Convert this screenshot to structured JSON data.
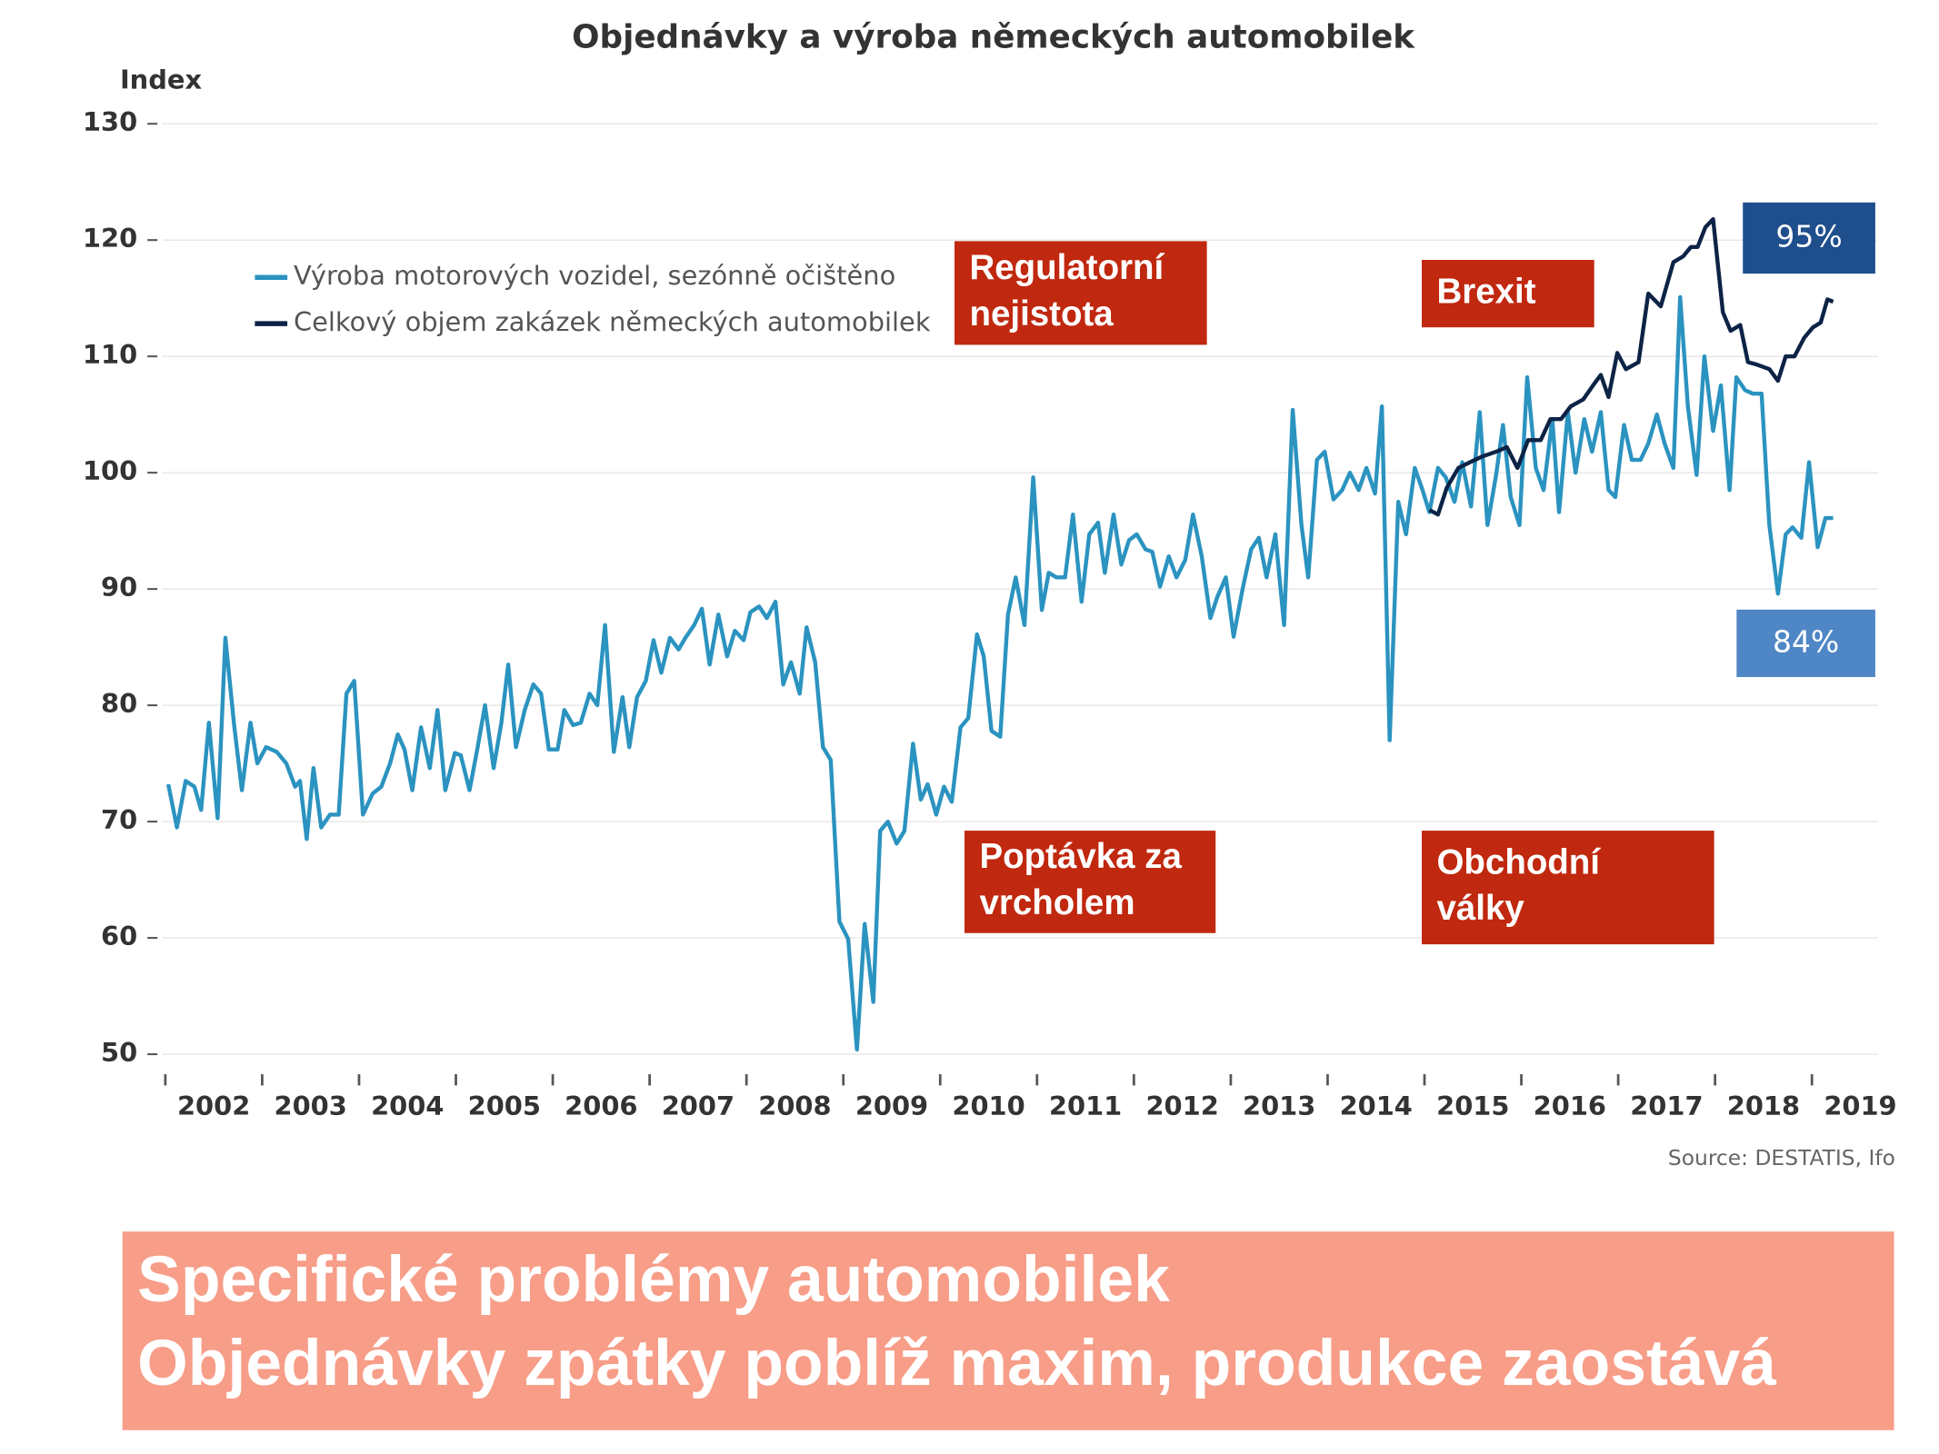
{
  "chart_data": {
    "type": "line",
    "title": "Objednávky a výroba německých automobilek",
    "y_label": "Index",
    "source": "Source: DESTATIS, Ifo",
    "ylim": [
      50,
      130
    ],
    "yticks": [
      50,
      60,
      70,
      80,
      90,
      100,
      110,
      120,
      130
    ],
    "xlim": [
      2001.97,
      2019.68
    ],
    "xticks": [
      2002,
      2003,
      2004,
      2005,
      2006,
      2007,
      2008,
      2009,
      2010,
      2011,
      2012,
      2013,
      2014,
      2015,
      2016,
      2017,
      2018,
      2019
    ],
    "grid": true,
    "legend": "upper left",
    "series": [
      {
        "name": "Výroba motorových vozidel, sezónně očištěno",
        "color": "#2b93c0",
        "x": [
          2002.03,
          2002.12,
          2002.21,
          2002.3,
          2002.37,
          2002.45,
          2002.54,
          2002.62,
          2002.71,
          2002.79,
          2002.88,
          2002.95,
          2003.04,
          2003.15,
          2003.25,
          2003.34,
          2003.39,
          2003.46,
          2003.53,
          2003.61,
          2003.7,
          2003.79,
          2003.87,
          2003.95,
          2004.04,
          2004.14,
          2004.23,
          2004.32,
          2004.4,
          2004.47,
          2004.55,
          2004.64,
          2004.73,
          2004.81,
          2004.89,
          2004.99,
          2005.05,
          2005.14,
          2005.22,
          2005.3,
          2005.39,
          2005.47,
          2005.54,
          2005.62,
          2005.71,
          2005.8,
          2005.88,
          2005.96,
          2006.05,
          2006.12,
          2006.21,
          2006.29,
          2006.38,
          2006.46,
          2006.54,
          2006.63,
          2006.72,
          2006.79,
          2006.87,
          2006.96,
          2007.04,
          2007.12,
          2007.21,
          2007.3,
          2007.37,
          2007.46,
          2007.54,
          2007.62,
          2007.71,
          2007.8,
          2007.88,
          2007.97,
          2008.04,
          2008.13,
          2008.21,
          2008.3,
          2008.38,
          2008.46,
          2008.55,
          2008.62,
          2008.71,
          2008.79,
          2008.87,
          2008.96,
          2009.05,
          2009.14,
          2009.22,
          2009.31,
          2009.38,
          2009.46,
          2009.55,
          2009.63,
          2009.72,
          2009.8,
          2009.87,
          2009.96,
          2010.04,
          2010.12,
          2010.21,
          2010.29,
          2010.38,
          2010.45,
          2010.53,
          2010.62,
          2010.7,
          2010.78,
          2010.87,
          2010.96,
          2011.05,
          2011.12,
          2011.2,
          2011.29,
          2011.37,
          2011.46,
          2011.54,
          2011.63,
          2011.7,
          2011.79,
          2011.87,
          2011.95,
          2012.03,
          2012.12,
          2012.19,
          2012.27,
          2012.36,
          2012.44,
          2012.53,
          2012.61,
          2012.7,
          2012.79,
          2012.86,
          2012.95,
          2013.03,
          2013.12,
          2013.21,
          2013.29,
          2013.37,
          2013.46,
          2013.55,
          2013.64,
          2013.73,
          2013.8,
          2013.89,
          2013.97,
          2014.06,
          2014.15,
          2014.23,
          2014.32,
          2014.4,
          2014.49,
          2014.56,
          2014.64,
          2014.73,
          2014.81,
          2014.9,
          2014.98,
          2015.05,
          2015.14,
          2015.22,
          2015.31,
          2015.39,
          2015.48,
          2015.57,
          2015.65,
          2015.74,
          2015.81,
          2015.89,
          2015.98,
          2016.06,
          2016.15,
          2016.23,
          2016.32,
          2016.39,
          2016.48,
          2016.56,
          2016.65,
          2016.73,
          2016.82,
          2016.9,
          2016.97,
          2017.06,
          2017.14,
          2017.23,
          2017.31,
          2017.4,
          2017.48,
          2017.57,
          2017.64,
          2017.72,
          2017.81,
          2017.89,
          2017.98,
          2018.06,
          2018.15,
          2018.22,
          2018.31,
          2018.39,
          2018.48,
          2018.56,
          2018.65,
          2018.73,
          2018.8,
          2018.89,
          2018.97,
          2019.06,
          2019.14,
          2019.22
        ],
        "values": [
          73.2,
          69.5,
          73.5,
          73,
          71,
          78.5,
          70.3,
          85.8,
          78.3,
          72.7,
          78.5,
          75,
          76.4,
          76,
          75,
          73,
          73.5,
          68.5,
          74.6,
          69.5,
          70.6,
          70.6,
          81,
          82.1,
          70.6,
          72.4,
          73,
          75,
          77.5,
          76.2,
          72.7,
          78.1,
          74.6,
          79.6,
          72.7,
          75.9,
          75.7,
          72.7,
          76.2,
          80,
          74.6,
          78.5,
          83.5,
          76.4,
          79.6,
          81.8,
          81,
          76.2,
          76.2,
          79.6,
          78.3,
          78.5,
          81,
          80,
          86.9,
          76,
          80.7,
          76.4,
          80.7,
          82.1,
          85.6,
          82.8,
          85.8,
          84.8,
          85.8,
          86.9,
          88.3,
          83.5,
          87.8,
          84.2,
          86.4,
          85.6,
          88,
          88.5,
          87.5,
          88.9,
          81.8,
          83.7,
          81,
          86.7,
          83.7,
          76.4,
          75.3,
          61.4,
          59.9,
          50.4,
          61.2,
          54.5,
          69.2,
          70,
          68.1,
          69.2,
          76.7,
          71.9,
          73.2,
          70.6,
          73,
          71.7,
          78.1,
          78.9,
          86.1,
          84.2,
          77.8,
          77.3,
          87.8,
          91,
          86.9,
          99.6,
          88.2,
          91.4,
          91,
          91,
          96.4,
          88.9,
          94.7,
          95.7,
          91.4,
          96.4,
          92.1,
          94.2,
          94.7,
          93.4,
          93.2,
          90.2,
          92.8,
          91,
          92.5,
          96.4,
          92.8,
          87.5,
          89.3,
          91,
          85.9,
          89.9,
          93.4,
          94.4,
          91,
          94.7,
          86.9,
          105.4,
          95.5,
          91,
          101.1,
          101.8,
          97.7,
          98.5,
          100,
          98.5,
          100.4,
          98.2,
          105.7,
          77,
          97.5,
          94.7,
          100.4,
          98.5,
          96.6,
          100.4,
          99.6,
          97.5,
          100.9,
          97.1,
          105.2,
          95.5,
          99.8,
          104.1,
          97.9,
          95.5,
          108.2,
          100.4,
          98.5,
          104.6,
          96.6,
          105.2,
          100,
          104.6,
          101.8,
          105.2,
          98.5,
          97.9,
          104.1,
          101.1,
          101.1,
          102.5,
          105,
          102.5,
          100.4,
          115.1,
          105.7,
          99.8,
          110,
          103.6,
          107.5,
          98.5,
          108.2,
          107.1,
          106.8,
          106.8,
          95.5,
          89.6,
          94.7,
          95.3,
          94.4,
          100.9,
          93.6,
          96.1,
          96.1
        ]
      },
      {
        "name": "Celkový objem zakázek německých automobilek",
        "color": "#0d2346",
        "x": [
          2015.05,
          2015.14,
          2015.23,
          2015.35,
          2015.47,
          2015.6,
          2015.74,
          2015.85,
          2015.96,
          2016.07,
          2016.2,
          2016.3,
          2016.41,
          2016.51,
          2016.64,
          2016.74,
          2016.82,
          2016.9,
          2016.99,
          2017.08,
          2017.21,
          2017.31,
          2017.44,
          2017.57,
          2017.67,
          2017.75,
          2017.82,
          2017.9,
          2017.98,
          2018.08,
          2018.16,
          2018.26,
          2018.34,
          2018.43,
          2018.56,
          2018.65,
          2018.73,
          2018.82,
          2018.92,
          2019.01,
          2019.09,
          2019.16,
          2019.22
        ],
        "values": [
          96.8,
          96.4,
          98.7,
          100.4,
          100.9,
          101.4,
          101.8,
          102.2,
          100.4,
          102.8,
          102.8,
          104.6,
          104.6,
          105.7,
          106.3,
          107.5,
          108.4,
          106.5,
          110.3,
          108.9,
          109.5,
          115.4,
          114.3,
          118.1,
          118.6,
          119.4,
          119.4,
          121.1,
          121.8,
          113.8,
          112.2,
          112.7,
          109.5,
          109.3,
          108.9,
          107.9,
          110,
          110,
          111.6,
          112.5,
          112.9,
          114.9,
          114.7
        ]
      }
    ],
    "annotations": [
      {
        "lines": [
          "Regulatorní",
          "nejistota"
        ],
        "color": "#c0280f"
      },
      {
        "lines": [
          "Brexit"
        ],
        "color": "#c0280f"
      },
      {
        "lines": [
          "Poptávka za",
          "vrcholem"
        ],
        "color": "#c0280f"
      },
      {
        "lines": [
          "Obchodní",
          "války"
        ],
        "color": "#c0280f"
      },
      {
        "lines": [
          "95%"
        ],
        "color": "#1f4e8c"
      },
      {
        "lines": [
          "84%"
        ],
        "color": "#4f86c6"
      }
    ]
  },
  "banner": {
    "lines": [
      "Specifické problémy automobilek",
      "Objednávky zpátky poblíž maxim, produkce zaostává"
    ],
    "color": "#f79d88"
  }
}
